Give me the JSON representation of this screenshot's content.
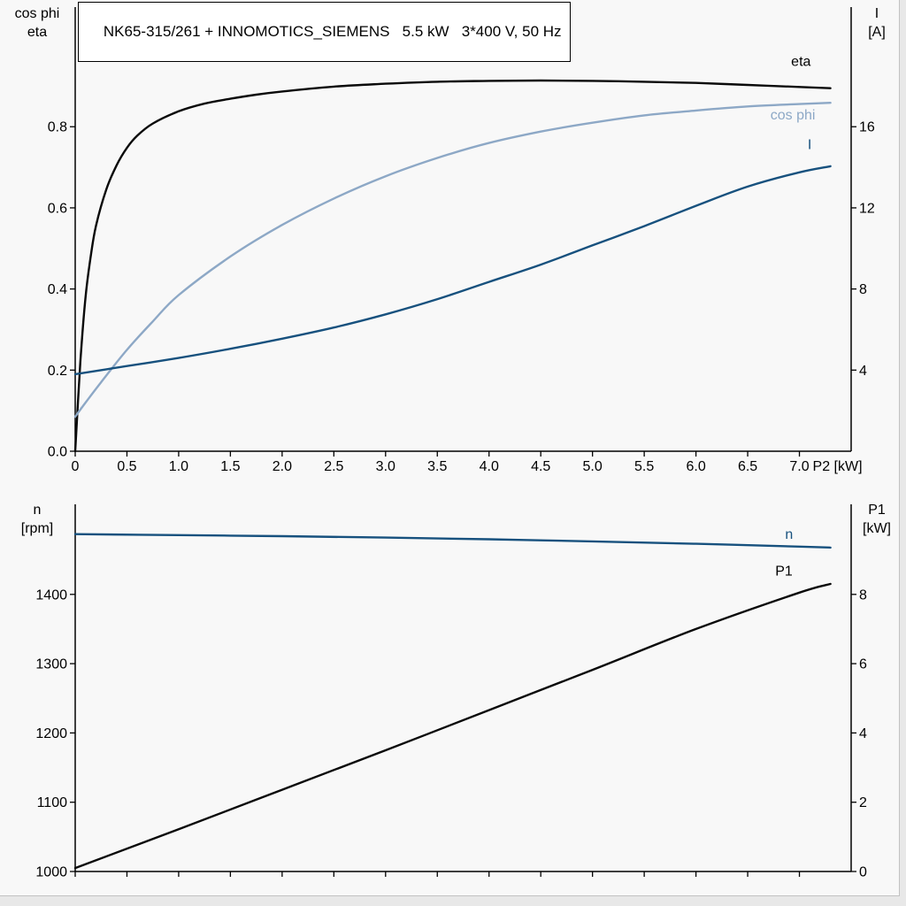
{
  "title_box": {
    "text": "NK65-315/261 + INNOMOTICS_SIEMENS   5.5 kW   3*400 V, 50 Hz"
  },
  "colors": {
    "black_curve": "#0a0a0a",
    "light_blue_curve": "#8da8c6",
    "dark_blue_curve": "#17517e",
    "axis": "#000000",
    "background": "#f8f8f8"
  },
  "chart_data": [
    {
      "type": "line",
      "name": "motor-performance",
      "corner_left": [
        "cos phi",
        "eta"
      ],
      "corner_right": [
        "I",
        "[A]"
      ],
      "x_axis": {
        "range": [
          0,
          7.5
        ],
        "ticks": [
          0,
          0.5,
          1,
          1.5,
          2,
          2.5,
          3,
          3.5,
          4,
          4.5,
          5,
          5.5,
          6,
          6.5,
          7
        ],
        "tick_labels": [
          "0",
          "0.5",
          "1.0",
          "1.5",
          "2.0",
          "2.5",
          "3.0",
          "3.5",
          "4.0",
          "4.5",
          "5.0",
          "5.5",
          "6.0",
          "6.5",
          "7.0"
        ],
        "show_tick_labels": true,
        "end_label": "P2 [kW]"
      },
      "y_left": {
        "range": [
          0,
          1.095
        ],
        "ticks": [
          0,
          0.2,
          0.4,
          0.6,
          0.8
        ],
        "tick_labels": [
          "0.0",
          "0.2",
          "0.4",
          "0.6",
          "0.8"
        ]
      },
      "y_right": {
        "range": [
          0,
          21.9
        ],
        "ticks": [
          4,
          8,
          12,
          16
        ],
        "tick_labels": [
          "4",
          "8",
          "12",
          "16"
        ]
      },
      "series": [
        {
          "name": "eta",
          "label": "eta",
          "axis": "left",
          "color": "#0a0a0a",
          "label_color": "#000000",
          "label_at": {
            "x": 6.92,
            "y": 0.95
          },
          "label_anchor": "start",
          "x": [
            0,
            0.05,
            0.1,
            0.15,
            0.2,
            0.3,
            0.4,
            0.5,
            0.6,
            0.75,
            1.0,
            1.25,
            1.5,
            1.75,
            2.0,
            2.5,
            3.0,
            3.5,
            4.0,
            4.5,
            5.0,
            5.5,
            6.0,
            6.5,
            7.0,
            7.3
          ],
          "y": [
            0,
            0.22,
            0.38,
            0.48,
            0.555,
            0.645,
            0.705,
            0.748,
            0.778,
            0.808,
            0.838,
            0.857,
            0.869,
            0.879,
            0.887,
            0.899,
            0.906,
            0.911,
            0.913,
            0.914,
            0.913,
            0.911,
            0.908,
            0.903,
            0.898,
            0.895
          ]
        },
        {
          "name": "cos-phi",
          "label": "cos phi",
          "axis": "left",
          "color": "#8da8c6",
          "label_color": "#8da8c6",
          "label_at": {
            "x": 6.72,
            "y": 0.818
          },
          "label_anchor": "start",
          "x": [
            0,
            0.1,
            0.25,
            0.5,
            0.75,
            1.0,
            1.5,
            2.0,
            2.5,
            3.0,
            3.5,
            4.0,
            4.5,
            5.0,
            5.5,
            6.0,
            6.5,
            7.0,
            7.3
          ],
          "y": [
            0.085,
            0.12,
            0.17,
            0.25,
            0.32,
            0.385,
            0.48,
            0.558,
            0.623,
            0.678,
            0.723,
            0.76,
            0.788,
            0.81,
            0.828,
            0.84,
            0.85,
            0.856,
            0.859
          ]
        },
        {
          "name": "current",
          "label": "I",
          "axis": "right",
          "color": "#17517e",
          "label_color": "#17517e",
          "label_at": {
            "x": 7.08,
            "y": 14.9
          },
          "label_anchor": "start",
          "x": [
            0,
            0.5,
            1.0,
            1.5,
            2.0,
            2.5,
            3.0,
            3.5,
            4.0,
            4.5,
            5.0,
            5.5,
            6.0,
            6.5,
            7.0,
            7.3
          ],
          "y": [
            3.8,
            4.2,
            4.6,
            5.05,
            5.55,
            6.1,
            6.75,
            7.5,
            8.35,
            9.2,
            10.15,
            11.1,
            12.1,
            13.05,
            13.75,
            14.05
          ]
        }
      ]
    },
    {
      "type": "line",
      "name": "speed-and-input-power",
      "corner_left": [
        "n",
        "[rpm]"
      ],
      "corner_right": [
        "P1",
        "[kW]"
      ],
      "x_axis": {
        "range": [
          0,
          7.5
        ],
        "ticks": [
          0,
          0.5,
          1,
          1.5,
          2,
          2.5,
          3,
          3.5,
          4,
          4.5,
          5,
          5.5,
          6,
          6.5,
          7
        ],
        "tick_labels": null,
        "show_tick_labels": false,
        "end_label": null
      },
      "y_left": {
        "range": [
          1000,
          1530
        ],
        "ticks": [
          1000,
          1100,
          1200,
          1300,
          1400
        ],
        "tick_labels": [
          "1000",
          "1100",
          "1200",
          "1300",
          "1400"
        ]
      },
      "y_right": {
        "range": [
          0,
          10.6
        ],
        "ticks": [
          0,
          2,
          4,
          6,
          8
        ],
        "tick_labels": [
          "0",
          "2",
          "4",
          "6",
          "8"
        ]
      },
      "series": [
        {
          "name": "speed",
          "label": "n",
          "axis": "left",
          "color": "#17517e",
          "label_color": "#17517e",
          "label_at": {
            "x": 6.9,
            "y": 1480
          },
          "label_anchor": "middle",
          "x": [
            0,
            1,
            2,
            3,
            4,
            5,
            6,
            7,
            7.3
          ],
          "y": [
            1487,
            1485.5,
            1484,
            1482,
            1479.5,
            1476.5,
            1473,
            1469,
            1467.5
          ]
        },
        {
          "name": "input-power",
          "label": "P1",
          "axis": "right",
          "color": "#0a0a0a",
          "label_color": "#000000",
          "label_at": {
            "x": 6.85,
            "y": 8.55
          },
          "label_anchor": "middle",
          "x": [
            0,
            1,
            2,
            3,
            4,
            5,
            6,
            7,
            7.3
          ],
          "y": [
            0.1,
            1.22,
            2.36,
            3.5,
            4.66,
            5.82,
            7.0,
            8.05,
            8.3
          ]
        }
      ]
    }
  ]
}
